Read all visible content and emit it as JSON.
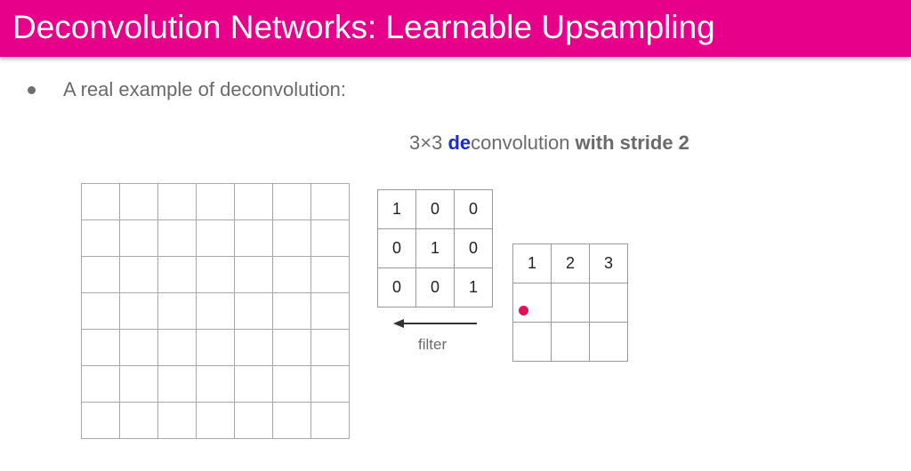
{
  "slide": {
    "title": "Deconvolution Networks: Learnable Upsampling",
    "bullet": "A real example of deconvolution:",
    "caption": {
      "prefix": "3×3 ",
      "de": "de",
      "middle": "convolution ",
      "suffix": "with stride 2"
    },
    "filter": {
      "label": "filter",
      "rows": [
        [
          "1",
          "0",
          "0"
        ],
        [
          "0",
          "1",
          "0"
        ],
        [
          "0",
          "0",
          "1"
        ]
      ]
    },
    "input": {
      "rows": [
        [
          "1",
          "2",
          "3"
        ],
        [
          "",
          "",
          ""
        ],
        [
          "",
          "",
          ""
        ]
      ]
    },
    "output_grid": {
      "rows": 7,
      "cols": 7
    },
    "colors": {
      "title_bar": "#e6008a",
      "de_highlight": "#1a2ccc",
      "marker": "#e0105a"
    }
  }
}
